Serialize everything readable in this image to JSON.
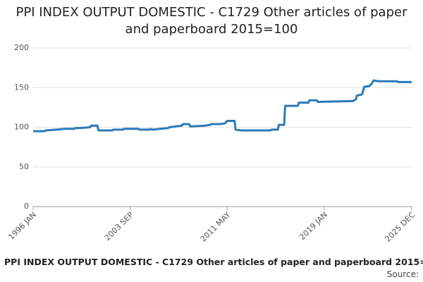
{
  "chart_data": {
    "type": "line",
    "title": "PPI INDEX OUTPUT DOMESTIC - C1729 Other articles of paper and paperboard 2015=100",
    "source": "Source:",
    "x": [
      "1996 JAN",
      "1996 DEC",
      "1997 JAN",
      "1997 NOV",
      "1998 JUL",
      "1999 APR",
      "1999 MAY",
      "1999 SEP",
      "2000 JUL",
      "2000 AUG",
      "2001 FEB",
      "2001 MAR",
      "2002 APR",
      "2002 MAY",
      "2003 FEB",
      "2003 MAR",
      "2004 MAY",
      "2004 JUN",
      "2005 MAR",
      "2005 APR",
      "2005 JUN",
      "2006 SEP",
      "2006 OCT",
      "2007 OCT",
      "2007 NOV",
      "2008 MAY",
      "2008 JUN",
      "2009 AUG",
      "2010 JAN",
      "2010 FEB",
      "2010 NOV",
      "2011 MAR",
      "2011 MAY",
      "2011 DEC",
      "2012 JAN",
      "2012 JUL",
      "2014 OCT",
      "2014 NOV",
      "2015 MAY",
      "2015 JUN",
      "2015 NOV",
      "2015 DEC",
      "2016 DEC",
      "2017 JAN",
      "2017 OCT",
      "2017 NOV",
      "2018 JUN",
      "2018 JUL",
      "2021 APR",
      "2021 JUL",
      "2021 AUG",
      "2021 DEC",
      "2022 JAN",
      "2022 MAR",
      "2022 AUG",
      "2022 OCT",
      "2022 DEC",
      "2023 MAY",
      "2024 OCT",
      "2024 NOV",
      "2025 DEC"
    ],
    "series": [
      {
        "name": "PPI",
        "color": "#2a7ab9",
        "values": [
          95,
          95,
          96,
          97,
          98,
          98,
          99,
          99,
          100,
          102,
          102,
          96,
          96,
          97,
          97,
          98,
          98,
          97,
          97,
          98,
          97,
          99,
          100,
          102,
          104,
          104,
          101,
          102,
          103,
          104,
          104,
          105,
          108,
          108,
          97,
          96,
          96,
          97,
          97,
          103,
          103,
          127,
          127,
          131,
          131,
          134,
          134,
          132,
          133,
          135,
          140,
          141,
          142,
          151,
          152,
          155,
          159,
          158,
          158,
          157,
          157
        ]
      }
    ],
    "xticks": [
      "1996 JAN",
      "2003 SEP",
      "2011 MAY",
      "2019 JAN",
      "2025 DEC"
    ],
    "ylim": [
      0,
      200
    ],
    "yticks": [
      0,
      50,
      100,
      150,
      200
    ],
    "grid": true
  }
}
